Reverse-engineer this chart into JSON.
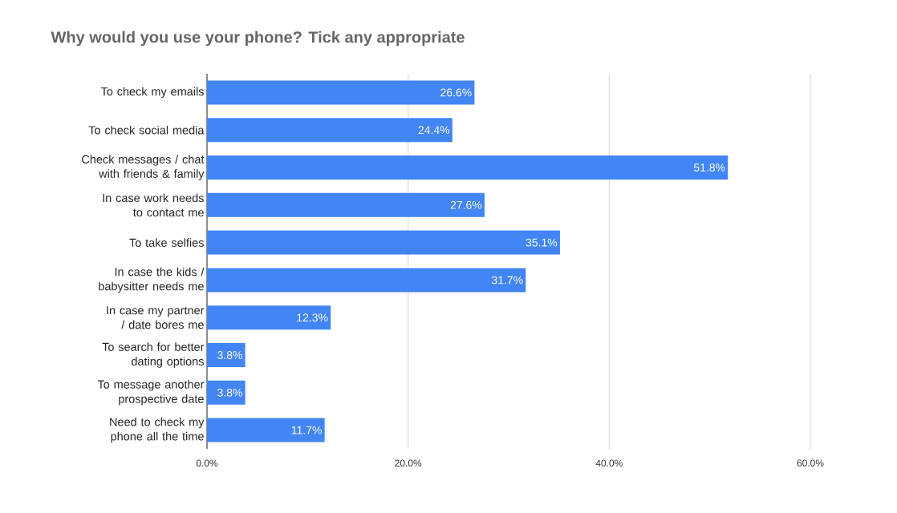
{
  "chart_data": {
    "type": "bar",
    "orientation": "horizontal",
    "title": "Why would you use your phone? Tick any appropriate",
    "categories": [
      "To check my emails",
      "To check social media",
      "Check messages / chat with friends & family",
      "In case work needs to contact me",
      "To take selfies",
      "In case the kids / babysitter needs me",
      "In case my partner / date bores me",
      "To search for better dating options",
      "To message another prospective date",
      "Need to check my phone all the time"
    ],
    "values": [
      26.6,
      24.4,
      51.8,
      27.6,
      35.1,
      31.7,
      12.3,
      3.8,
      3.8,
      11.7
    ],
    "value_labels": [
      "26.6%",
      "24.4%",
      "51.8%",
      "27.6%",
      "35.1%",
      "31.7%",
      "12.3%",
      "3.8%",
      "3.8%",
      "11.7%"
    ],
    "color": "#4285f4",
    "xlim": [
      0,
      60
    ],
    "xticks": [
      {
        "value": 0,
        "label": "0.0%"
      },
      {
        "value": 20,
        "label": "20.0%"
      },
      {
        "value": 40,
        "label": "40.0%"
      },
      {
        "value": 60,
        "label": "60.0%"
      }
    ],
    "grid": "x"
  }
}
